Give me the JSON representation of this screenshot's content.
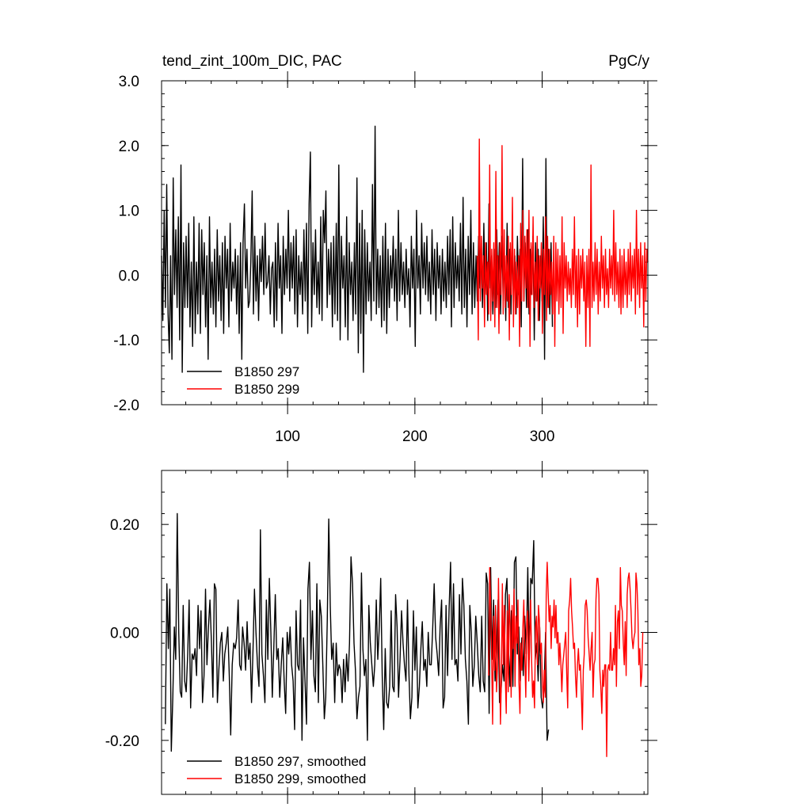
{
  "chart_data": [
    {
      "type": "line",
      "title_left": "tend_zint_100m_DIC, PAC",
      "title_right": "PgC/y",
      "xlabel": "",
      "ylabel": "",
      "xlim": [
        1,
        383
      ],
      "ylim": [
        -2.0,
        3.0
      ],
      "x_ticks": [
        100,
        200,
        300
      ],
      "x_tick_labels": [
        "100",
        "200",
        "300"
      ],
      "y_ticks": [
        -2.0,
        -1.0,
        0.0,
        1.0,
        2.0,
        3.0
      ],
      "y_tick_labels": [
        "-2.0",
        "-1.0",
        "0.0",
        "1.0",
        "2.0",
        "3.0"
      ],
      "grid": false,
      "legend_position": "bottom-left",
      "series": [
        {
          "name": "B1850 297",
          "color": "#000000",
          "x_start": 1,
          "values": [
            0.3,
            -0.7,
            1.0,
            -0.5,
            1.4,
            -0.6,
            -1.2,
            0.3,
            -1.3,
            1.5,
            -0.3,
            0.7,
            -0.5,
            0.9,
            -1.0,
            1.7,
            -1.5,
            0.5,
            -0.5,
            0.6,
            -0.5,
            0.8,
            -0.8,
            0.2,
            -1.1,
            0.9,
            -0.9,
            0.2,
            -0.6,
            0.8,
            -0.9,
            0.7,
            -0.3,
            0.5,
            -0.8,
            0.3,
            -1.3,
            0.9,
            -0.5,
            0.2,
            -0.6,
            0.4,
            -0.8,
            0.7,
            -0.4,
            0.3,
            -0.7,
            0.5,
            -0.9,
            0.6,
            -0.2,
            0.4,
            -0.8,
            0.8,
            -0.4,
            0.2,
            -0.2,
            0.4,
            -0.6,
            0.3,
            -0.9,
            0.5,
            -1.3,
            0.5,
            1.1,
            -0.2,
            0.4,
            -0.5,
            -0.4,
            0.2,
            1.3,
            -0.6,
            0.6,
            -0.4,
            0.3,
            -0.7,
            0.4,
            -0.1,
            0.6,
            -0.3,
            0.8,
            -0.2,
            -0.1,
            0.3,
            -0.6,
            0.1,
            0.2,
            -0.8,
            0.5,
            -0.7,
            0.8,
            -0.2,
            0.3,
            -0.9,
            0.6,
            -0.3,
            0.4,
            -0.2,
            1.0,
            -0.4,
            0.5,
            -0.2,
            0.6,
            -0.6,
            0.7,
            -0.8,
            0.3,
            -0.3,
            0.2,
            -0.6,
            0.7,
            -0.4,
            0.8,
            -0.9,
            1.1,
            1.9,
            -0.8,
            0.5,
            -0.3,
            0.7,
            -0.5,
            0.2,
            -0.6,
            0.9,
            -0.7,
            1.0,
            0.5,
            1.3,
            -0.5,
            0.4,
            -0.3,
            0.5,
            -0.8,
            0.6,
            -0.6,
            0.8,
            -0.7,
            1.7,
            -1.0,
            0.6,
            -0.2,
            0.3,
            -0.8,
            0.9,
            -1.0,
            0.5,
            -0.3,
            0.2,
            -0.7,
            0.5,
            -0.6,
            1.5,
            -1.2,
            0.8,
            -0.9,
            1.0,
            -1.5,
            0.7,
            -0.6,
            0.5,
            -0.4,
            0.2,
            -0.7,
            1.4,
            -0.4,
            2.3,
            -0.6,
            0.4,
            -0.5,
            0.3,
            -0.8,
            0.6,
            -0.7,
            0.8,
            -0.9,
            0.4,
            -0.5,
            0.3,
            -0.2,
            0.6,
            -0.4,
            0.4,
            -0.7,
            1.0,
            -0.4,
            0.5,
            -0.3,
            0.2,
            -0.5,
            0.4,
            -0.3,
            0.1,
            -0.8,
            0.6,
            -0.2,
            0.4,
            -1.1,
            1.0,
            -0.2,
            0.3,
            -0.6,
            0.8,
            -0.2,
            0.5,
            -0.3,
            0.6,
            -0.4,
            0.2,
            -0.6,
            0.7,
            -0.3,
            0.4,
            -0.7,
            0.5,
            -0.2,
            0.3,
            -0.6,
            0.4,
            -0.4,
            0.2,
            -0.5,
            0.6,
            -0.3,
            0.7,
            -0.8,
            0.9,
            -0.5,
            0.5,
            -0.2,
            0.3,
            -0.4,
            0.8,
            -0.6,
            1.2,
            -0.5,
            0.4,
            -0.8,
            0.6,
            -0.3,
            1.0,
            -0.6,
            0.5,
            -0.5,
            0.3,
            -0.4,
            0.6,
            -0.2,
            0.4,
            -0.5,
            0.8,
            -0.3,
            0.5,
            -0.7,
            1.1,
            -0.2,
            0.3,
            -0.6,
            0.4,
            -0.5,
            0.7,
            -0.3,
            0.5,
            -0.6,
            0.6,
            -0.4,
            0.3,
            -0.7,
            0.8,
            -0.5,
            0.4,
            -0.6,
            0.5,
            -0.4,
            0.3,
            -0.6,
            0.6,
            -0.3,
            0.4,
            -0.8,
            1.8,
            -0.4,
            0.5,
            -0.5,
            0.7,
            -0.6,
            0.4,
            -0.3,
            0.6,
            -1.0,
            0.5,
            -0.4,
            0.4,
            -0.7,
            0.3,
            -0.4,
            0.9,
            -1.3,
            1.8,
            -0.5,
            0.4,
            -0.6,
            0.5,
            -0.8
          ],
          "note": "values estimated per year, x = 1..~308"
        },
        {
          "name": "B1850 299",
          "color": "#ff0000",
          "x_start": 249,
          "values": [
            0.3,
            -1.0,
            2.1,
            -0.4,
            0.6,
            -0.2,
            0.3,
            -0.8,
            0.5,
            -0.3,
            0.2,
            -0.6,
            1.7,
            -0.7,
            0.4,
            -0.4,
            0.5,
            -0.8,
            1.6,
            -0.5,
            0.3,
            -0.9,
            0.5,
            -0.3,
            2.0,
            -0.6,
            0.7,
            -0.5,
            0.3,
            -0.4,
            0.6,
            -1.0,
            0.5,
            -0.3,
            1.2,
            -0.8,
            0.4,
            -0.6,
            0.2,
            -0.5,
            0.3,
            -1.1,
            0.8,
            -0.4,
            1.0,
            -0.4,
            0.6,
            -0.2,
            0.7,
            -0.5,
            1.0,
            -1.1,
            0.5,
            -0.3,
            0.9,
            -0.5,
            0.2,
            -0.4,
            0.6,
            -0.7,
            0.3,
            -0.2,
            0.5,
            -0.9,
            0.4,
            -0.3,
            0.9,
            -0.7,
            0.6,
            -0.5,
            0.4,
            -0.3,
            0.2,
            -0.6,
            0.6,
            -1.1,
            0.5,
            -0.4,
            0.4,
            -0.6,
            0.3,
            -0.5,
            0.9,
            -0.9,
            0.5,
            -0.2,
            0.3,
            -0.4,
            0.2,
            -0.3,
            0.1,
            -0.5,
            0.4,
            -0.3,
            0.9,
            -0.5,
            0.3,
            -0.8,
            0.4,
            -0.6,
            0.3,
            -0.2,
            0.4,
            -0.4,
            0.2,
            -1.1,
            0.3,
            -0.5,
            0.4,
            -1.1,
            1.7,
            -0.5,
            0.2,
            -0.4,
            0.5,
            -0.3,
            0.4,
            -0.6,
            0.2,
            -0.4,
            0.6,
            -0.2,
            0.3,
            -0.5,
            0.4,
            -0.3,
            0.1,
            -0.5,
            0.4,
            -0.2,
            0.3,
            -0.3,
            1.0,
            -0.4,
            0.5,
            -0.3,
            0.2,
            -0.5,
            0.4,
            -0.6,
            0.3,
            -0.5,
            0.4,
            -0.3,
            0.2,
            -0.5,
            0.4,
            -0.3,
            0.5,
            -0.4,
            0.3,
            -0.2,
            0.4,
            -0.6,
            1.0,
            -0.3,
            0.4,
            -0.5,
            0.5,
            -0.2,
            0.3,
            -0.8,
            0.5,
            -0.4,
            0.4,
            0.2
          ],
          "note": "values estimated per year, x = 249..~383"
        }
      ]
    },
    {
      "type": "line",
      "title": "",
      "xlabel": "",
      "ylabel": "",
      "xlim": [
        1,
        383
      ],
      "ylim": [
        -0.3,
        0.3
      ],
      "x_ticks": [
        100,
        200,
        300
      ],
      "y_ticks": [
        -0.2,
        0.0,
        0.2
      ],
      "y_tick_labels": [
        "-0.20",
        "0.00",
        "0.20"
      ],
      "grid": false,
      "legend_position": "bottom-left",
      "series": [
        {
          "name": "B1850 297, smoothed",
          "color": "#000000",
          "x_start": 4,
          "values": [
            -0.17,
            0.09,
            -0.03,
            0.08,
            -0.22,
            -0.12,
            0.01,
            -0.05,
            0.22,
            0.0,
            -0.11,
            -0.12,
            0.05,
            -0.09,
            -0.11,
            -0.04,
            0.06,
            -0.14,
            -0.04,
            -0.05,
            -0.03,
            -0.08,
            0.05,
            -0.03,
            0.04,
            -0.13,
            -0.08,
            0.08,
            -0.06,
            0.01,
            0.06,
            -0.02,
            -0.12,
            0.09,
            0.08,
            -0.13,
            -0.07,
            -0.02,
            0.0,
            -0.09,
            -0.04,
            -0.02,
            0.01,
            -0.08,
            -0.19,
            -0.06,
            -0.02,
            -0.03,
            -0.01,
            0.06,
            -0.06,
            -0.07,
            0.01,
            -0.02,
            -0.07,
            0.02,
            -0.05,
            -0.02,
            -0.13,
            -0.03,
            0.08,
            0.0,
            -0.06,
            -0.1,
            0.19,
            -0.04,
            -0.08,
            -0.13,
            0.06,
            -0.05,
            0.1,
            0.0,
            -0.12,
            -0.03,
            0.07,
            -0.05,
            -0.03,
            -0.12,
            -0.06,
            -0.01,
            -0.09,
            -0.15,
            0.0,
            -0.04,
            0.01,
            -0.06,
            -0.09,
            -0.18,
            0.04,
            -0.06,
            -0.07,
            0.06,
            -0.2,
            -0.01,
            -0.09,
            -0.17,
            0.08,
            0.13,
            -0.05,
            0.04,
            -0.08,
            -0.11,
            0.09,
            -0.13,
            0.06,
            0.03,
            -0.06,
            -0.16,
            -0.12,
            0.02,
            0.21,
            0.05,
            -0.05,
            -0.02,
            -0.13,
            -0.02,
            -0.08,
            -0.06,
            -0.07,
            -0.13,
            -0.05,
            -0.11,
            -0.04,
            -0.09,
            -0.02,
            0.14,
            0.09,
            -0.02,
            -0.07,
            -0.16,
            -0.12,
            -0.1,
            0.11,
            -0.03,
            -0.08,
            -0.05,
            -0.2,
            0.05,
            -0.02,
            -0.06,
            -0.1,
            -0.06,
            0.06,
            -0.05,
            0.01,
            0.1,
            -0.08,
            -0.18,
            -0.03,
            -0.13,
            -0.14,
            -0.1,
            0.04,
            -0.1,
            -0.11,
            0.07,
            0.01,
            -0.12,
            -0.05,
            0.04,
            -0.02,
            -0.06,
            -0.09,
            0.06,
            -0.08,
            -0.16,
            -0.12,
            0.04,
            -0.07,
            0.01,
            -0.14,
            -0.1,
            -0.03,
            0.02,
            -0.07,
            -0.05,
            -0.1,
            0.0,
            -0.06,
            -0.06,
            0.01,
            0.09,
            -0.01,
            -0.04,
            -0.08,
            0.01,
            0.06,
            -0.14,
            -0.12,
            0.05,
            -0.08,
            0.04,
            0.13,
            -0.05,
            0.09,
            -0.06,
            -0.05,
            -0.09,
            0.07,
            -0.04,
            0.1,
            0.05,
            -0.05,
            -0.09,
            -0.17,
            0.05,
            0.0,
            -0.1,
            -0.06,
            0.03,
            -0.02,
            -0.08,
            -0.11,
            0.03,
            -0.09,
            -0.11,
            0.11,
            0.09,
            -0.15,
            0.12,
            -0.05,
            0.06,
            -0.09,
            -0.03,
            0.06,
            -0.13,
            -0.11,
            -0.06,
            -0.09,
            0.07,
            0.1,
            -0.03,
            -0.1,
            0.04,
            -0.1,
            0.13,
            0.14,
            -0.04,
            0.01,
            -0.09,
            -0.01,
            -0.08,
            0.03,
            -0.04,
            0.12,
            -0.05,
            0.1,
            0.09,
            0.17,
            -0.05,
            -0.02,
            -0.09,
            0.01,
            -0.12,
            -0.14,
            -0.1,
            0.0,
            -0.2,
            -0.18
          ],
          "note": "values estimated per year, x = 4..~305"
        },
        {
          "name": "B1850 299, smoothed",
          "color": "#ff0000",
          "x_start": 258,
          "values": [
            -0.08,
            0.12,
            0.05,
            -0.05,
            -0.17,
            0.03,
            -0.07,
            0.05,
            -0.11,
            -0.06,
            0.1,
            -0.03,
            -0.17,
            -0.08,
            0.09,
            -0.06,
            0.05,
            -0.08,
            -0.15,
            0.04,
            -0.11,
            0.07,
            0.01,
            -0.12,
            0.05,
            -0.03,
            0.08,
            -0.1,
            0.03,
            -0.02,
            0.06,
            -0.09,
            -0.15,
            -0.02,
            -0.07,
            0.01,
            0.06,
            -0.04,
            -0.12,
            0.02,
            0.04,
            -0.09,
            -0.01,
            0.06,
            -0.05,
            -0.12,
            -0.09,
            -0.14,
            0.01,
            0.03,
            -0.06,
            0.05,
            0.02,
            -0.04,
            -0.02,
            -0.09,
            -0.13,
            -0.07,
            -0.12,
            0.07,
            0.13,
            0.07,
            0.02,
            0.05,
            -0.03,
            0.03,
            0.01,
            0.06,
            -0.01,
            0.05,
            -0.02,
            0.0,
            -0.06,
            -0.02,
            -0.06,
            -0.11,
            -0.06,
            -0.04,
            -0.02,
            0.0,
            -0.08,
            -0.14,
            0.04,
            0.06,
            0.1,
            0.04,
            0.01,
            -0.03,
            -0.02,
            -0.08,
            -0.12,
            -0.06,
            -0.03,
            -0.07,
            -0.06,
            -0.11,
            -0.18,
            -0.07,
            -0.04,
            0.05,
            0.06,
            0.04,
            -0.01,
            -0.04,
            -0.07,
            -0.03,
            0.0,
            -0.12,
            -0.06,
            -0.05,
            0.06,
            0.1,
            0.1,
            0.07,
            -0.07,
            -0.1,
            -0.15,
            -0.07,
            -0.1,
            -0.06,
            -0.06,
            -0.23,
            -0.07,
            -0.06,
            -0.07,
            0.0,
            -0.07,
            -0.07,
            -0.03,
            -0.06,
            0.05,
            -0.1,
            0.02,
            0.04,
            -0.03,
            0.12,
            0.05,
            0.04,
            -0.02,
            -0.06,
            0.02,
            -0.08,
            0.07,
            0.1,
            0.11,
            0.08,
            0.04,
            -0.01,
            -0.03,
            -0.01,
            0.0,
            0.11,
            0.09,
            0.04,
            -0.06,
            -0.03,
            -0.1,
            -0.08,
            0.0
          ],
          "note": "values estimated per year, x = 258..~379"
        }
      ]
    }
  ]
}
